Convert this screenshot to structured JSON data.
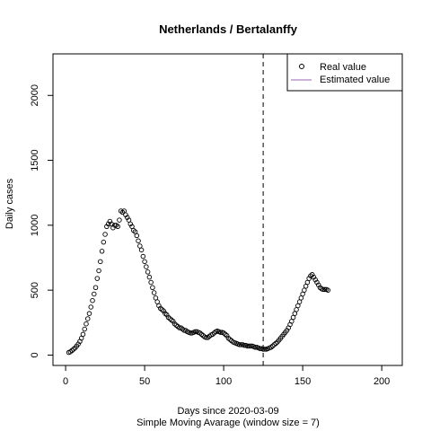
{
  "chart_data": {
    "type": "scatter",
    "title": "Netherlands / Bertalanffy",
    "xlabel": "Days since 2020-03-09",
    "subtitle": "Simple Moving Avarage (window size = 7)",
    "ylabel": "Daily cases",
    "xlim": [
      -8,
      213
    ],
    "ylim": [
      -80,
      2320
    ],
    "xticks": [
      0,
      50,
      100,
      150,
      200
    ],
    "yticks": [
      0,
      500,
      1000,
      1500,
      2000
    ],
    "vline": {
      "x": 125,
      "style": "dashed"
    },
    "legend": {
      "position": "top-right",
      "entries": [
        {
          "label": "Real value",
          "marker": "open-circle",
          "color": "#000000"
        },
        {
          "label": "Estimated value",
          "marker": "line",
          "color": "#9966b3"
        }
      ]
    },
    "series": [
      {
        "name": "Real value",
        "points": [
          [
            2,
            20
          ],
          [
            3,
            25
          ],
          [
            4,
            35
          ],
          [
            5,
            45
          ],
          [
            6,
            55
          ],
          [
            7,
            70
          ],
          [
            8,
            85
          ],
          [
            9,
            105
          ],
          [
            10,
            130
          ],
          [
            11,
            160
          ],
          [
            12,
            200
          ],
          [
            13,
            240
          ],
          [
            14,
            280
          ],
          [
            15,
            320
          ],
          [
            16,
            370
          ],
          [
            17,
            420
          ],
          [
            18,
            470
          ],
          [
            19,
            520
          ],
          [
            20,
            590
          ],
          [
            21,
            650
          ],
          [
            22,
            720
          ],
          [
            23,
            800
          ],
          [
            24,
            870
          ],
          [
            25,
            930
          ],
          [
            26,
            990
          ],
          [
            27,
            1010
          ],
          [
            28,
            1030
          ],
          [
            29,
            1010
          ],
          [
            30,
            980
          ],
          [
            31,
            1000
          ],
          [
            32,
            1000
          ],
          [
            33,
            990
          ],
          [
            34,
            1040
          ],
          [
            35,
            1110
          ],
          [
            36,
            1100
          ],
          [
            37,
            1110
          ],
          [
            38,
            1080
          ],
          [
            39,
            1060
          ],
          [
            40,
            1040
          ],
          [
            41,
            1010
          ],
          [
            42,
            990
          ],
          [
            43,
            960
          ],
          [
            44,
            950
          ],
          [
            45,
            920
          ],
          [
            46,
            880
          ],
          [
            47,
            840
          ],
          [
            48,
            810
          ],
          [
            49,
            760
          ],
          [
            50,
            720
          ],
          [
            51,
            680
          ],
          [
            52,
            640
          ],
          [
            53,
            600
          ],
          [
            54,
            560
          ],
          [
            55,
            520
          ],
          [
            56,
            480
          ],
          [
            57,
            440
          ],
          [
            58,
            410
          ],
          [
            59,
            380
          ],
          [
            60,
            360
          ],
          [
            61,
            350
          ],
          [
            62,
            340
          ],
          [
            63,
            320
          ],
          [
            64,
            310
          ],
          [
            65,
            290
          ],
          [
            66,
            280
          ],
          [
            67,
            270
          ],
          [
            68,
            260
          ],
          [
            69,
            240
          ],
          [
            70,
            230
          ],
          [
            71,
            220
          ],
          [
            72,
            210
          ],
          [
            73,
            210
          ],
          [
            74,
            200
          ],
          [
            75,
            190
          ],
          [
            76,
            190
          ],
          [
            77,
            180
          ],
          [
            78,
            175
          ],
          [
            79,
            170
          ],
          [
            80,
            170
          ],
          [
            81,
            175
          ],
          [
            82,
            180
          ],
          [
            83,
            180
          ],
          [
            84,
            175
          ],
          [
            85,
            170
          ],
          [
            86,
            160
          ],
          [
            87,
            150
          ],
          [
            88,
            140
          ],
          [
            89,
            135
          ],
          [
            90,
            135
          ],
          [
            91,
            145
          ],
          [
            92,
            155
          ],
          [
            93,
            160
          ],
          [
            94,
            170
          ],
          [
            95,
            180
          ],
          [
            96,
            185
          ],
          [
            97,
            180
          ],
          [
            98,
            175
          ],
          [
            99,
            175
          ],
          [
            100,
            170
          ],
          [
            101,
            160
          ],
          [
            102,
            150
          ],
          [
            103,
            130
          ],
          [
            104,
            120
          ],
          [
            105,
            110
          ],
          [
            106,
            100
          ],
          [
            107,
            95
          ],
          [
            108,
            90
          ],
          [
            109,
            85
          ],
          [
            110,
            80
          ],
          [
            111,
            80
          ],
          [
            112,
            80
          ],
          [
            113,
            75
          ],
          [
            114,
            75
          ],
          [
            115,
            70
          ],
          [
            116,
            70
          ],
          [
            117,
            70
          ],
          [
            118,
            70
          ],
          [
            119,
            65
          ],
          [
            120,
            60
          ],
          [
            121,
            60
          ],
          [
            122,
            55
          ],
          [
            123,
            50
          ],
          [
            124,
            50
          ],
          [
            125,
            45
          ],
          [
            126,
            45
          ],
          [
            127,
            45
          ],
          [
            128,
            50
          ],
          [
            129,
            55
          ],
          [
            130,
            60
          ],
          [
            131,
            70
          ],
          [
            132,
            80
          ],
          [
            133,
            90
          ],
          [
            134,
            100
          ],
          [
            135,
            115
          ],
          [
            136,
            130
          ],
          [
            137,
            145
          ],
          [
            138,
            160
          ],
          [
            139,
            175
          ],
          [
            140,
            190
          ],
          [
            141,
            210
          ],
          [
            142,
            235
          ],
          [
            143,
            260
          ],
          [
            144,
            290
          ],
          [
            145,
            320
          ],
          [
            146,
            350
          ],
          [
            147,
            380
          ],
          [
            148,
            410
          ],
          [
            149,
            440
          ],
          [
            150,
            470
          ],
          [
            151,
            500
          ],
          [
            152,
            530
          ],
          [
            153,
            560
          ],
          [
            154,
            590
          ],
          [
            155,
            610
          ],
          [
            156,
            620
          ],
          [
            157,
            600
          ],
          [
            158,
            580
          ],
          [
            159,
            560
          ],
          [
            160,
            540
          ],
          [
            161,
            520
          ],
          [
            162,
            510
          ],
          [
            163,
            505
          ],
          [
            164,
            505
          ],
          [
            165,
            505
          ],
          [
            166,
            500
          ]
        ]
      }
    ]
  }
}
